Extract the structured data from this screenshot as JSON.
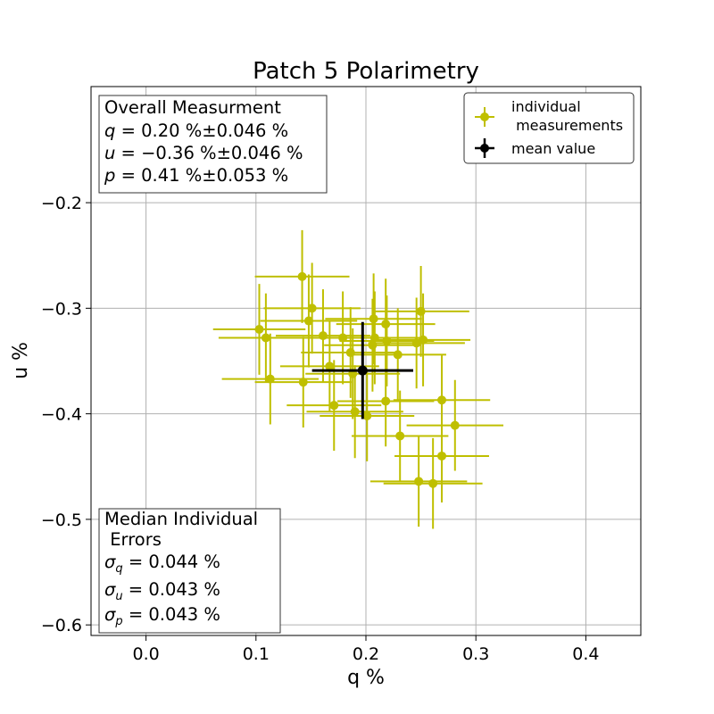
{
  "chart_data": {
    "type": "scatter",
    "title": "Patch 5 Polarimetry",
    "xlabel": "q %",
    "ylabel": "u %",
    "xlim": [
      -0.05,
      0.45
    ],
    "ylim": [
      -0.61,
      -0.09
    ],
    "x_ticks": [
      0.0,
      0.1,
      0.2,
      0.3,
      0.4
    ],
    "x_tick_labels": [
      "0.0",
      "0.1",
      "0.2",
      "0.3",
      "0.4"
    ],
    "y_ticks": [
      -0.6,
      -0.5,
      -0.4,
      -0.3,
      -0.2
    ],
    "y_tick_labels": [
      "−0.6",
      "−0.5",
      "−0.4",
      "−0.3",
      "−0.2"
    ],
    "grid": true,
    "colors": {
      "individual": "#bfbf00",
      "mean": "#000000"
    },
    "legend": {
      "position": "top-right",
      "entries": [
        {
          "label_lines": [
            "individual",
            " measurements"
          ],
          "color": "#bfbf00"
        },
        {
          "label_lines": [
            "mean value"
          ],
          "color": "#000000"
        }
      ]
    },
    "series": [
      {
        "name": "individual measurements",
        "points": [
          {
            "q": 0.142,
            "u": -0.27,
            "q_err": 0.043,
            "u_err": 0.044
          },
          {
            "q": 0.151,
            "u": -0.3,
            "q_err": 0.044,
            "u_err": 0.043
          },
          {
            "q": 0.103,
            "u": -0.32,
            "q_err": 0.042,
            "u_err": 0.043
          },
          {
            "q": 0.109,
            "u": -0.328,
            "q_err": 0.043,
            "u_err": 0.042
          },
          {
            "q": 0.148,
            "u": -0.312,
            "q_err": 0.044,
            "u_err": 0.044
          },
          {
            "q": 0.113,
            "u": -0.367,
            "q_err": 0.044,
            "u_err": 0.043
          },
          {
            "q": 0.143,
            "u": -0.37,
            "q_err": 0.044,
            "u_err": 0.043
          },
          {
            "q": 0.161,
            "u": -0.326,
            "q_err": 0.043,
            "u_err": 0.044
          },
          {
            "q": 0.167,
            "u": -0.355,
            "q_err": 0.045,
            "u_err": 0.043
          },
          {
            "q": 0.171,
            "u": -0.392,
            "q_err": 0.043,
            "u_err": 0.043
          },
          {
            "q": 0.179,
            "u": -0.328,
            "q_err": 0.044,
            "u_err": 0.044
          },
          {
            "q": 0.186,
            "u": -0.342,
            "q_err": 0.045,
            "u_err": 0.043
          },
          {
            "q": 0.188,
            "u": -0.362,
            "q_err": 0.043,
            "u_err": 0.043
          },
          {
            "q": 0.19,
            "u": -0.398,
            "q_err": 0.044,
            "u_err": 0.044
          },
          {
            "q": 0.201,
            "u": -0.402,
            "q_err": 0.043,
            "u_err": 0.043
          },
          {
            "q": 0.206,
            "u": -0.335,
            "q_err": 0.044,
            "u_err": 0.044
          },
          {
            "q": 0.207,
            "u": -0.31,
            "q_err": 0.044,
            "u_err": 0.043
          },
          {
            "q": 0.208,
            "u": -0.328,
            "q_err": 0.044,
            "u_err": 0.044
          },
          {
            "q": 0.218,
            "u": -0.315,
            "q_err": 0.045,
            "u_err": 0.043
          },
          {
            "q": 0.219,
            "u": -0.331,
            "q_err": 0.043,
            "u_err": 0.043
          },
          {
            "q": 0.218,
            "u": -0.388,
            "q_err": 0.044,
            "u_err": 0.043
          },
          {
            "q": 0.229,
            "u": -0.344,
            "q_err": 0.044,
            "u_err": 0.044
          },
          {
            "q": 0.231,
            "u": -0.421,
            "q_err": 0.044,
            "u_err": 0.043
          },
          {
            "q": 0.246,
            "u": -0.333,
            "q_err": 0.044,
            "u_err": 0.043
          },
          {
            "q": 0.25,
            "u": -0.303,
            "q_err": 0.044,
            "u_err": 0.043
          },
          {
            "q": 0.252,
            "u": -0.33,
            "q_err": 0.043,
            "u_err": 0.044
          },
          {
            "q": 0.248,
            "u": -0.464,
            "q_err": 0.044,
            "u_err": 0.043
          },
          {
            "q": 0.261,
            "u": -0.466,
            "q_err": 0.045,
            "u_err": 0.043
          },
          {
            "q": 0.269,
            "u": -0.387,
            "q_err": 0.044,
            "u_err": 0.043
          },
          {
            "q": 0.269,
            "u": -0.44,
            "q_err": 0.043,
            "u_err": 0.044
          },
          {
            "q": 0.281,
            "u": -0.411,
            "q_err": 0.044,
            "u_err": 0.043
          }
        ]
      },
      {
        "name": "mean value",
        "points": [
          {
            "q": 0.197,
            "u": -0.359,
            "q_err": 0.046,
            "u_err": 0.046
          }
        ]
      }
    ],
    "annotations": {
      "overall": {
        "title": "Overall Measurment",
        "q_sym": "q",
        "q_value": " = 0.20 %±0.046 %",
        "u_sym": "u",
        "u_value": " = −0.36 %±0.046 %",
        "p_sym": "p",
        "p_value": " = 0.41 %±0.053 %"
      },
      "median": {
        "title_line1": "Median Individual",
        "title_line2": " Errors",
        "sigma": "σ",
        "sq_sub": "q",
        "sq_value": " = 0.044 %",
        "su_sub": "u",
        "su_value": " = 0.043 %",
        "sp_sub": "p",
        "sp_value": " = 0.043 %"
      }
    }
  }
}
